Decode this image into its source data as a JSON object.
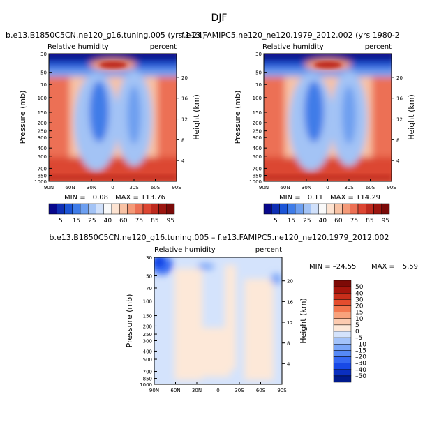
{
  "figure_title": "DJF",
  "palette": {
    "abs": [
      "#08088c",
      "#0f2fb4",
      "#1c55d6",
      "#3f7ce8",
      "#6d9ff0",
      "#a3c3f5",
      "#d0e0fa",
      "#f9f9f9",
      "#fde3d1",
      "#f8c2a4",
      "#f49a78",
      "#ec7054",
      "#dc4632",
      "#bd2a1e",
      "#9c1610",
      "#7a0a08"
    ],
    "diff": [
      "#001a8c",
      "#0a2fc0",
      "#1849e6",
      "#3568f2",
      "#5689f5",
      "#7aa6f8",
      "#a3c3fa",
      "#d4e3fc",
      "#fde8d8",
      "#fccbb0",
      "#f8a27c",
      "#f2774f",
      "#e44d2e",
      "#c92e1a",
      "#a5150c",
      "#7d0a06"
    ]
  },
  "chart_data": [
    {
      "type": "contour",
      "title": "b.e13.B1850C5CN.ne120_g16.tuning.005 (yrs 1-24)",
      "left_label": "Relative humidity",
      "right_label": "percent",
      "xlabel": "",
      "ylabel": "Pressure (mb)",
      "y2label": "Height (km)",
      "x_ticks": [
        "90N",
        "60N",
        "30N",
        "0",
        "30S",
        "60S",
        "90S"
      ],
      "y_ticks": [
        "30",
        "50",
        "70",
        "100",
        "150",
        "200",
        "250",
        "300",
        "400",
        "500",
        "700",
        "850",
        "1000"
      ],
      "y_tick_values": [
        30,
        50,
        70,
        100,
        150,
        200,
        250,
        300,
        400,
        500,
        700,
        850,
        1000
      ],
      "height_ticks": [
        "20",
        "16",
        "12",
        "8",
        "4"
      ],
      "height_values": [
        20,
        16,
        12,
        8,
        4
      ],
      "ylim": [
        30,
        1000
      ],
      "stats_min_label": "MIN =",
      "stats_min": "0.08",
      "stats_max_label": "MAX = 113.76",
      "colorbar_labels": [
        "5",
        "15",
        "25",
        "40",
        "60",
        "75",
        "85",
        "95"
      ]
    },
    {
      "type": "contour",
      "title": "f.e13.FAMIPC5.ne120_ne120.1979_2012.002 (yrs 1980-2",
      "left_label": "Relative humidity",
      "right_label": "percent",
      "xlabel": "",
      "ylabel": "Pressure (mb)",
      "y2label": "Height (km)",
      "x_ticks": [
        "90N",
        "60N",
        "30N",
        "0",
        "30S",
        "60S",
        "90S"
      ],
      "y_ticks": [
        "30",
        "50",
        "70",
        "100",
        "150",
        "200",
        "250",
        "300",
        "400",
        "500",
        "700",
        "850",
        "1000"
      ],
      "y_tick_values": [
        30,
        50,
        70,
        100,
        150,
        200,
        250,
        300,
        400,
        500,
        700,
        850,
        1000
      ],
      "height_ticks": [
        "20",
        "16",
        "12",
        "8",
        "4"
      ],
      "height_values": [
        20,
        16,
        12,
        8,
        4
      ],
      "ylim": [
        30,
        1000
      ],
      "stats_min_label": "MIN =",
      "stats_min": "0.11",
      "stats_max_label": "MAX = 114.29",
      "colorbar_labels": [
        "5",
        "15",
        "25",
        "40",
        "60",
        "75",
        "85",
        "95"
      ]
    },
    {
      "type": "contour",
      "title": "b.e13.B1850C5CN.ne120_g16.tuning.005 – f.e13.FAMIPC5.ne120_ne120.1979_2012.002",
      "left_label": "Relative humidity",
      "right_label": "percent",
      "xlabel": "",
      "ylabel": "Pressure (mb)",
      "y2label": "Height (km)",
      "x_ticks": [
        "90N",
        "60N",
        "30N",
        "0",
        "30S",
        "60S",
        "90S"
      ],
      "y_ticks": [
        "30",
        "50",
        "70",
        "100",
        "150",
        "200",
        "250",
        "300",
        "400",
        "500",
        "700",
        "850",
        "1000"
      ],
      "y_tick_values": [
        30,
        50,
        70,
        100,
        150,
        200,
        250,
        300,
        400,
        500,
        700,
        850,
        1000
      ],
      "height_ticks": [
        "20",
        "16",
        "12",
        "8",
        "4"
      ],
      "height_values": [
        20,
        16,
        12,
        8,
        4
      ],
      "ylim": [
        30,
        1000
      ],
      "stats_min_label": "MIN = –24.55",
      "stats_max_label": "MAX =",
      "stats_max": "5.59",
      "colorbar_labels": [
        "50",
        "40",
        "30",
        "20",
        "15",
        "10",
        "5",
        "0",
        "–5",
        "–10",
        "–15",
        "–20",
        "–30",
        "–40",
        "–50"
      ]
    }
  ]
}
